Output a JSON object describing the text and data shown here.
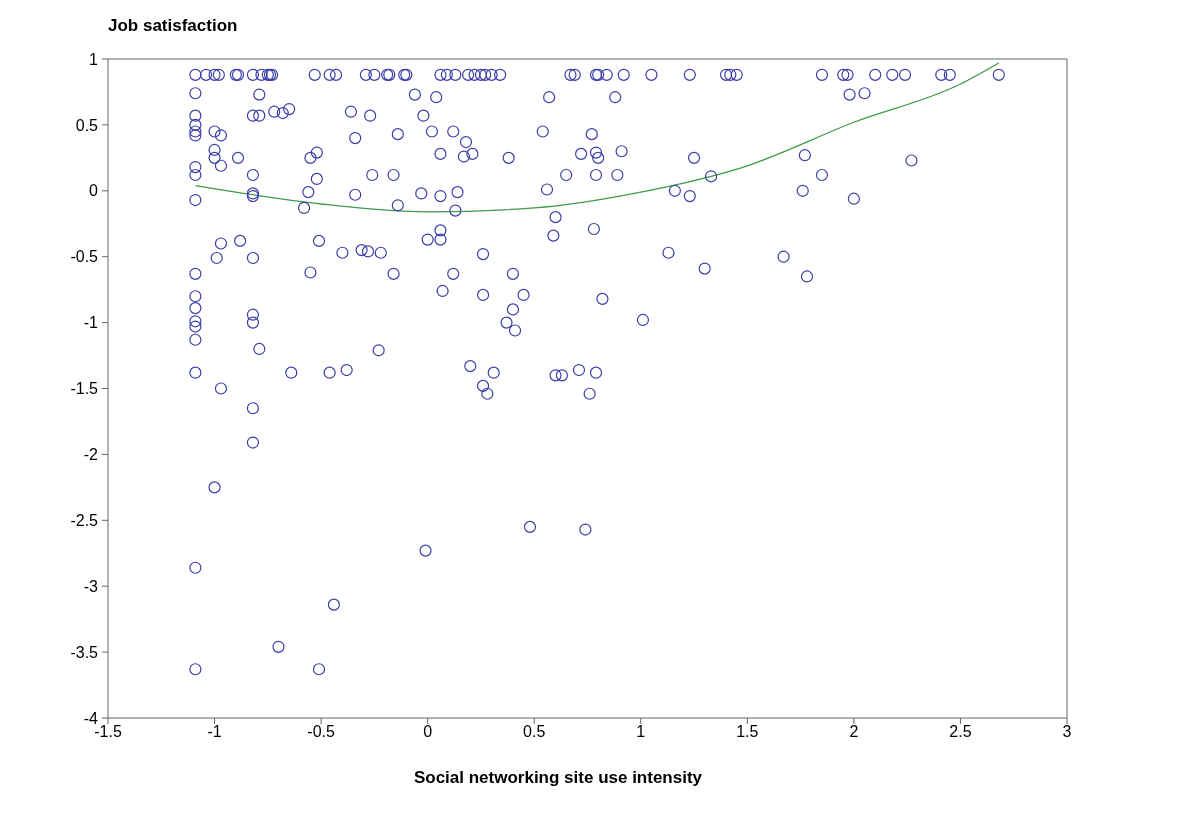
{
  "chart_data": {
    "type": "scatter",
    "xlabel": "Social networking site use intensity",
    "ylabel": "Job satisfaction",
    "xlim": [
      -1.5,
      3
    ],
    "xticks": [
      -1.5,
      -1,
      -0.5,
      0,
      0.5,
      1,
      1.5,
      2,
      2.5,
      3
    ],
    "ylim": [
      -4,
      1
    ],
    "yticks": [
      -4,
      -3.5,
      -3,
      -2.5,
      -2,
      -1.5,
      -1,
      -0.5,
      0,
      0.5,
      1
    ],
    "series": [
      {
        "marker": "circle",
        "color": "#3c3ca8",
        "x": [
          -1.09,
          -1.04,
          -1.0,
          -0.98,
          -0.9,
          -0.89,
          -0.82,
          -0.78,
          -0.75,
          -0.74,
          -0.73,
          -0.53,
          -0.46,
          -0.43,
          -0.29,
          -0.25,
          -0.19,
          -0.18,
          -0.11,
          -0.1,
          0.06,
          0.09,
          0.13,
          0.19,
          0.22,
          0.25,
          0.27,
          0.3,
          0.34,
          0.67,
          0.69,
          0.79,
          0.8,
          0.84,
          0.92,
          1.05,
          1.23,
          1.4,
          1.42,
          1.45,
          1.85,
          1.95,
          1.97,
          2.1,
          2.18,
          2.24,
          2.41,
          2.45,
          2.68,
          -1.09,
          -1.09,
          -1.09,
          -1.09,
          -1.09,
          -1.09,
          -1.09,
          -1.09,
          -1.09,
          -1.09,
          -1.09,
          -1.09,
          -1.09,
          -1.09,
          -1.09,
          -1.0,
          -1.0,
          -1.0,
          -0.97,
          -0.97,
          -0.89,
          -0.97,
          -0.99,
          -0.88,
          -0.97,
          -0.79,
          -0.82,
          -0.79,
          -0.72,
          -0.68,
          -0.65,
          -0.82,
          -0.82,
          -0.82,
          -0.82,
          -0.82,
          -0.82,
          -0.79,
          -0.82,
          -0.64,
          -0.55,
          -0.52,
          -0.52,
          -0.56,
          -0.58,
          -0.51,
          -0.55,
          -0.46,
          -0.38,
          -0.4,
          -0.31,
          -0.28,
          -0.22,
          -0.23,
          -0.36,
          -0.34,
          -0.27,
          -0.34,
          -0.26,
          -0.16,
          -0.14,
          -0.14,
          -0.16,
          -0.06,
          0.04,
          -0.02,
          0.02,
          0.12,
          0.18,
          0.17,
          0.21,
          0.06,
          0.38,
          -0.03,
          0.06,
          0.14,
          0.13,
          0.06,
          0.06,
          0.0,
          0.26,
          0.12,
          0.4,
          0.07,
          0.26,
          0.45,
          0.4,
          0.37,
          0.41,
          0.2,
          0.31,
          0.26,
          0.28,
          0.54,
          0.57,
          0.56,
          0.6,
          0.59,
          0.6,
          0.63,
          0.71,
          0.79,
          0.76,
          0.88,
          0.77,
          0.72,
          0.79,
          0.8,
          0.91,
          0.65,
          0.79,
          0.89,
          0.78,
          0.82,
          1.01,
          1.25,
          1.33,
          1.16,
          1.23,
          1.13,
          1.3,
          1.98,
          2.05,
          2.27,
          1.77,
          1.85,
          1.76,
          2.0,
          1.67,
          1.78,
          0.74,
          -0.82,
          -1.0,
          -1.09,
          -0.44,
          -0.7,
          -0.51,
          -1.09,
          -0.01,
          0.48
        ],
        "values": [
          0.88,
          0.88,
          0.88,
          0.88,
          0.88,
          0.88,
          0.88,
          0.88,
          0.88,
          0.88,
          0.88,
          0.88,
          0.88,
          0.88,
          0.88,
          0.88,
          0.88,
          0.88,
          0.88,
          0.88,
          0.88,
          0.88,
          0.88,
          0.88,
          0.88,
          0.88,
          0.88,
          0.88,
          0.88,
          0.88,
          0.88,
          0.88,
          0.88,
          0.88,
          0.88,
          0.88,
          0.88,
          0.88,
          0.88,
          0.88,
          0.88,
          0.88,
          0.88,
          0.88,
          0.88,
          0.88,
          0.88,
          0.88,
          0.88,
          0.74,
          0.57,
          0.5,
          0.45,
          0.42,
          0.18,
          0.12,
          -0.07,
          -0.63,
          -0.8,
          -0.89,
          -0.99,
          -1.03,
          -1.13,
          -1.38,
          0.31,
          0.25,
          0.45,
          0.42,
          0.19,
          0.25,
          -0.4,
          -0.51,
          -0.38,
          -1.5,
          0.73,
          0.57,
          0.57,
          0.6,
          0.59,
          0.62,
          0.12,
          -0.02,
          -0.04,
          -0.51,
          -0.94,
          -1.0,
          -1.2,
          -1.65,
          -1.38,
          0.25,
          0.29,
          0.09,
          -0.01,
          -0.13,
          -0.38,
          -0.62,
          -1.38,
          -1.36,
          -0.47,
          -0.45,
          -0.46,
          -0.47,
          -1.21,
          0.6,
          0.4,
          0.57,
          -0.03,
          0.12,
          0.12,
          0.43,
          -0.11,
          -0.63,
          0.73,
          0.71,
          0.57,
          0.45,
          0.45,
          0.37,
          0.26,
          0.28,
          0.28,
          0.25,
          -0.02,
          -0.04,
          -0.01,
          -0.15,
          -0.3,
          -0.37,
          -0.37,
          -0.48,
          -0.63,
          -0.63,
          -0.76,
          -0.79,
          -0.79,
          -0.9,
          -1.0,
          -1.06,
          -1.33,
          -1.38,
          -1.48,
          -1.54,
          0.45,
          0.71,
          0.01,
          -0.2,
          -0.34,
          -1.4,
          -1.4,
          -1.36,
          -1.38,
          -1.54,
          0.71,
          0.43,
          0.28,
          0.29,
          0.25,
          0.3,
          0.12,
          0.12,
          0.12,
          -0.29,
          -0.82,
          -0.98,
          0.25,
          0.11,
          0.0,
          -0.04,
          -0.47,
          -0.59,
          0.73,
          0.74,
          0.23,
          0.27,
          0.12,
          0.0,
          -0.06,
          -0.5,
          -0.65,
          -2.57,
          -1.91,
          -2.25,
          -2.86,
          -3.14,
          -3.46,
          -3.63,
          -3.63,
          -2.73,
          -2.55
        ]
      },
      {
        "type": "line",
        "marker": "none",
        "line_style": "solid",
        "color": "#3f9a4a",
        "x": [
          -1.09,
          -0.5,
          0,
          0.5,
          1,
          1.5,
          2,
          2.5,
          2.68
        ],
        "values": [
          0.04,
          -0.1,
          -0.16,
          -0.13,
          -0.01,
          0.19,
          0.52,
          0.81,
          0.97
        ]
      }
    ]
  }
}
